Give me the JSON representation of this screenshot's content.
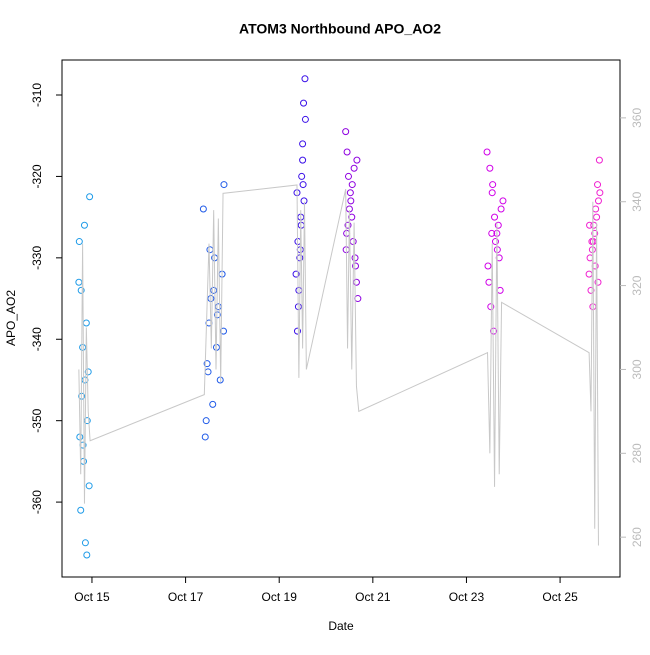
{
  "chart_data": {
    "type": "scatter",
    "title": "ATOM3 Northbound APO_AO2",
    "x_label": "Date",
    "y_label": "APO_AO2",
    "xlim": [
      14.36,
      26.28
    ],
    "ylim": [
      -369.2,
      -305.7
    ],
    "y2lim": [
      250.5,
      373.8
    ],
    "xticks": [
      {
        "value": 15,
        "label": "Oct 15"
      },
      {
        "value": 17,
        "label": "Oct 17"
      },
      {
        "value": 19,
        "label": "Oct 19"
      },
      {
        "value": 21,
        "label": "Oct 21"
      },
      {
        "value": 23,
        "label": "Oct 23"
      },
      {
        "value": 25,
        "label": "Oct 25"
      }
    ],
    "yticks": [
      -360,
      -350,
      -340,
      -330,
      -320,
      -310
    ],
    "y2ticks": [
      260,
      280,
      300,
      320,
      340,
      360
    ],
    "series": [
      {
        "color": "#1E9BE8",
        "x": [
          14.72,
          14.74,
          14.76,
          14.78,
          14.8,
          14.82,
          14.84,
          14.86,
          14.88,
          14.9,
          14.92,
          14.94,
          14.73,
          14.77,
          14.81,
          14.85,
          14.95,
          14.89
        ],
        "values": [
          -333,
          -352,
          -361,
          -347,
          -341,
          -355,
          -326,
          -365,
          -338,
          -350,
          -344,
          -358,
          -328,
          -334,
          -353,
          -345,
          -322.5,
          -366.5
        ]
      },
      {
        "color": "#1F5AE8",
        "x": [
          17.38,
          17.42,
          17.46,
          17.5,
          17.54,
          17.58,
          17.62,
          17.66,
          17.7,
          17.74,
          17.78,
          17.81,
          17.44,
          17.52,
          17.6,
          17.82,
          17.48,
          17.68
        ],
        "values": [
          -324,
          -352,
          -343,
          -338,
          -335,
          -348,
          -330,
          -341,
          -336,
          -345,
          -332,
          -339,
          -350,
          -329,
          -334,
          -321,
          -344,
          -337
        ]
      },
      {
        "color": "#3A10E8",
        "x": [
          19.55,
          19.52,
          19.5,
          19.48,
          19.46,
          19.44,
          19.42,
          19.4,
          19.38,
          19.5,
          19.36,
          19.39,
          19.47,
          19.53,
          19.41,
          19.56,
          19.45,
          19.51
        ],
        "values": [
          -308,
          -311,
          -316,
          -320,
          -325,
          -330,
          -334,
          -328,
          -322,
          -318,
          -332,
          -339,
          -326,
          -323,
          -336,
          -313,
          -329,
          -321
        ]
      },
      {
        "color": "#8E00E0",
        "x": [
          20.42,
          20.45,
          20.48,
          20.52,
          20.55,
          20.58,
          20.62,
          20.65,
          20.68,
          20.44,
          20.5,
          20.56,
          20.6,
          20.47,
          20.63,
          20.53,
          20.66,
          20.43
        ],
        "values": [
          -314.5,
          -317,
          -320,
          -322,
          -325,
          -328,
          -330,
          -333,
          -335,
          -327,
          -324,
          -321,
          -319,
          -326,
          -331,
          -323,
          -318,
          -329
        ]
      },
      {
        "color": "#D000E8",
        "x": [
          23.44,
          23.5,
          23.55,
          23.6,
          23.65,
          23.7,
          23.48,
          23.52,
          23.58,
          23.62,
          23.68,
          23.74,
          23.46,
          23.56,
          23.66,
          23.72,
          23.78,
          23.54
        ],
        "values": [
          -317,
          -319,
          -322,
          -325,
          -327,
          -330,
          -333,
          -336,
          -339,
          -328,
          -326,
          -324,
          -331,
          -321,
          -329,
          -334,
          -323,
          -327
        ]
      },
      {
        "color": "#F020D0",
        "x": [
          25.84,
          25.8,
          25.76,
          25.72,
          25.68,
          25.64,
          25.62,
          25.66,
          25.7,
          25.74,
          25.78,
          25.82,
          25.69,
          25.75,
          25.81,
          25.63,
          25.85,
          25.71
        ],
        "values": [
          -318,
          -321,
          -324,
          -326,
          -328,
          -330,
          -332,
          -334,
          -336,
          -327,
          -325,
          -323,
          -329,
          -331,
          -333,
          -326,
          -322,
          -328
        ]
      },
      {
        "color": "#c8c8c8",
        "axis": "y2",
        "line": true,
        "x": [
          14.72,
          14.76,
          14.8,
          14.84,
          14.88,
          14.92,
          14.96,
          17.4,
          17.5,
          17.55,
          17.6,
          17.65,
          17.7,
          17.75,
          17.8,
          19.38,
          19.42,
          19.46,
          19.5,
          19.54,
          19.58,
          20.42,
          20.46,
          20.5,
          20.55,
          20.6,
          20.65,
          20.7,
          23.45,
          23.5,
          23.55,
          23.6,
          23.65,
          23.7,
          23.75,
          25.62,
          25.66,
          25.7,
          25.74,
          25.78,
          25.82
        ],
        "values": [
          300,
          275,
          330,
          268,
          310,
          290,
          283,
          294,
          330,
          305,
          338,
          300,
          336,
          297,
          342,
          344,
          298,
          338,
          305,
          340,
          300,
          343,
          305,
          338,
          300,
          335,
          296,
          290,
          304,
          280,
          330,
          272,
          335,
          275,
          316,
          304,
          290,
          340,
          262,
          335,
          258
        ]
      }
    ]
  }
}
